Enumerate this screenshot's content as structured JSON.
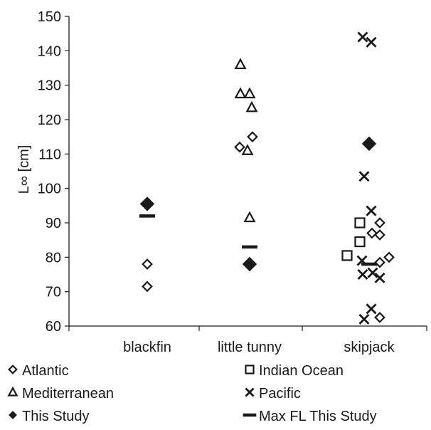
{
  "chart_data": {
    "type": "scatter",
    "title": "",
    "xlabel": "",
    "ylabel": "L∞ [cm]",
    "ylim": [
      60,
      150
    ],
    "yticks": [
      60,
      70,
      80,
      90,
      100,
      110,
      120,
      130,
      140,
      150
    ],
    "categories": [
      "blackfin",
      "little tunny",
      "skipjack"
    ],
    "grid": false,
    "legend_position": "bottom",
    "colors": {
      "ink": "#1a1a1a"
    },
    "series": [
      {
        "name": "Atlantic",
        "marker": "diamond-open",
        "points": [
          {
            "category": "blackfin",
            "y": 78.0
          },
          {
            "category": "blackfin",
            "y": 71.5
          },
          {
            "category": "little tunny",
            "y": 112.0
          },
          {
            "category": "little tunny",
            "y": 115.0
          },
          {
            "category": "skipjack",
            "y": 90.0
          },
          {
            "category": "skipjack",
            "y": 87.0
          },
          {
            "category": "skipjack",
            "y": 86.5
          },
          {
            "category": "skipjack",
            "y": 80.0
          },
          {
            "category": "skipjack",
            "y": 78.5
          },
          {
            "category": "skipjack",
            "y": 62.5
          }
        ]
      },
      {
        "name": "Indian Ocean",
        "marker": "square-open",
        "points": [
          {
            "category": "skipjack",
            "y": 90.0
          },
          {
            "category": "skipjack",
            "y": 84.5
          },
          {
            "category": "skipjack",
            "y": 80.5
          }
        ]
      },
      {
        "name": "Mediterranean",
        "marker": "triangle-open",
        "points": [
          {
            "category": "little tunny",
            "y": 136.0
          },
          {
            "category": "little tunny",
            "y": 127.5
          },
          {
            "category": "little tunny",
            "y": 127.5
          },
          {
            "category": "little tunny",
            "y": 123.5
          },
          {
            "category": "little tunny",
            "y": 111.0
          },
          {
            "category": "little tunny",
            "y": 91.5
          }
        ]
      },
      {
        "name": "Pacific",
        "marker": "x",
        "points": [
          {
            "category": "skipjack",
            "y": 144.0
          },
          {
            "category": "skipjack",
            "y": 142.5
          },
          {
            "category": "skipjack",
            "y": 103.5
          },
          {
            "category": "skipjack",
            "y": 93.5
          },
          {
            "category": "skipjack",
            "y": 79.0
          },
          {
            "category": "skipjack",
            "y": 75.5
          },
          {
            "category": "skipjack",
            "y": 75.0
          },
          {
            "category": "skipjack",
            "y": 74.0
          },
          {
            "category": "skipjack",
            "y": 65.0
          },
          {
            "category": "skipjack",
            "y": 62.0
          }
        ]
      },
      {
        "name": "This Study",
        "marker": "diamond-filled",
        "points": [
          {
            "category": "blackfin",
            "y": 95.5
          },
          {
            "category": "little tunny",
            "y": 78.0
          },
          {
            "category": "skipjack",
            "y": 113.0
          }
        ]
      },
      {
        "name": "Max FL This Study",
        "marker": "dash",
        "points": [
          {
            "category": "blackfin",
            "y": 92.0
          },
          {
            "category": "little tunny",
            "y": 83.0
          },
          {
            "category": "skipjack",
            "y": 78.0
          }
        ]
      }
    ]
  }
}
